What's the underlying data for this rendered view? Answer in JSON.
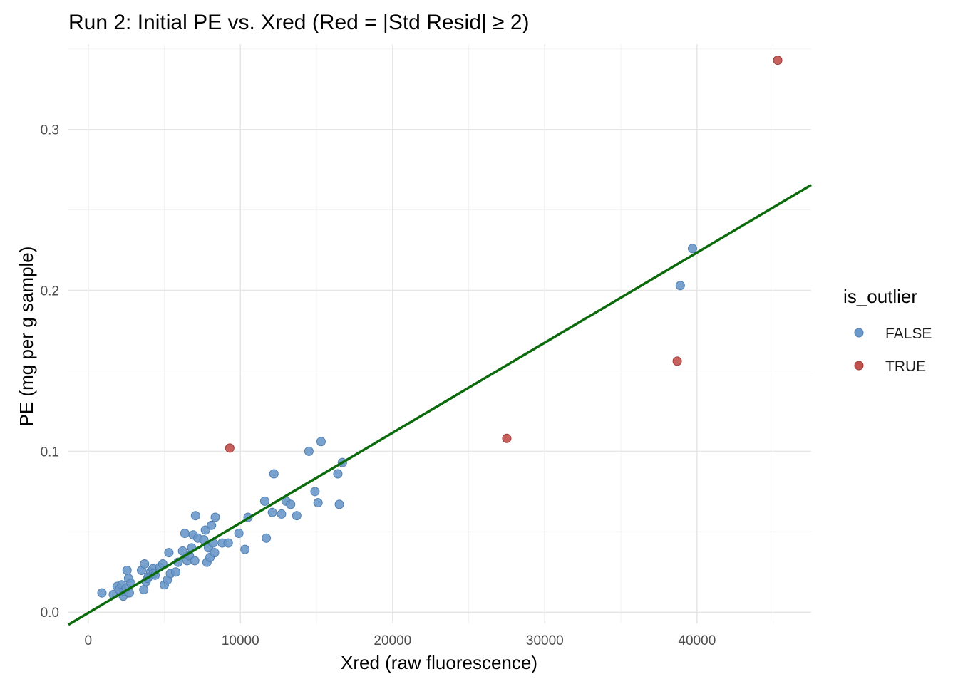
{
  "chart_data": {
    "type": "scatter",
    "title": "Run 2: Initial PE vs. Xred (Red = |Std Resid| ≥ 2)",
    "xlabel": "Xred (raw fluorescence)",
    "ylabel": "PE (mg per g sample)",
    "xlim": [
      -1300,
      47500
    ],
    "ylim": [
      -0.007,
      0.353
    ],
    "x_ticks": [
      0,
      10000,
      20000,
      30000,
      40000
    ],
    "y_ticks": [
      0.0,
      0.1,
      0.2,
      0.3
    ],
    "x_tick_labels": [
      "0",
      "10000",
      "20000",
      "30000",
      "40000"
    ],
    "y_tick_labels": [
      "0.0",
      "0.1",
      "0.2",
      "0.3"
    ],
    "grid": true,
    "legend": {
      "title": "is_outlier",
      "position": "right",
      "entries": [
        {
          "label": "FALSE",
          "color": "#6a98c9"
        },
        {
          "label": "TRUE",
          "color": "#c0504d"
        }
      ]
    },
    "fit_line": {
      "intercept": -0.0005,
      "slope": 5.6e-06,
      "color": "#0b6a0b"
    },
    "series": [
      {
        "name": "FALSE",
        "color": "#6a98c9",
        "x": [
          900,
          1650,
          1900,
          2050,
          2200,
          2300,
          2350,
          2500,
          2550,
          2650,
          2700,
          2800,
          3500,
          3650,
          3700,
          3800,
          3900,
          3950,
          4100,
          4250,
          4300,
          4400,
          4700,
          4900,
          5000,
          5200,
          5300,
          5400,
          5750,
          5900,
          6200,
          6350,
          6500,
          6650,
          6800,
          6900,
          7000,
          7050,
          7200,
          7600,
          7700,
          7800,
          7900,
          8000,
          8100,
          8200,
          8300,
          8350,
          8800,
          9200,
          9900,
          10300,
          10500,
          11600,
          11700,
          12100,
          12200,
          12700,
          13000,
          13300,
          13700,
          14500,
          14900,
          15100,
          15300,
          16400,
          16500,
          16700,
          38900,
          39700
        ],
        "y": [
          0.012,
          0.011,
          0.016,
          0.014,
          0.017,
          0.01,
          0.013,
          0.015,
          0.026,
          0.021,
          0.012,
          0.018,
          0.026,
          0.014,
          0.03,
          0.019,
          0.021,
          0.022,
          0.025,
          0.027,
          0.024,
          0.023,
          0.028,
          0.03,
          0.017,
          0.02,
          0.037,
          0.024,
          0.025,
          0.031,
          0.038,
          0.049,
          0.032,
          0.035,
          0.04,
          0.048,
          0.032,
          0.06,
          0.046,
          0.045,
          0.051,
          0.031,
          0.04,
          0.034,
          0.054,
          0.043,
          0.037,
          0.059,
          0.043,
          0.043,
          0.049,
          0.039,
          0.059,
          0.069,
          0.046,
          0.062,
          0.086,
          0.061,
          0.069,
          0.067,
          0.06,
          0.1,
          0.075,
          0.068,
          0.106,
          0.086,
          0.067,
          0.093,
          0.203,
          0.226
        ]
      },
      {
        "name": "TRUE",
        "color": "#c0504d",
        "x": [
          9300,
          27500,
          38700,
          45300
        ],
        "y": [
          0.102,
          0.108,
          0.156,
          0.343
        ]
      }
    ]
  }
}
